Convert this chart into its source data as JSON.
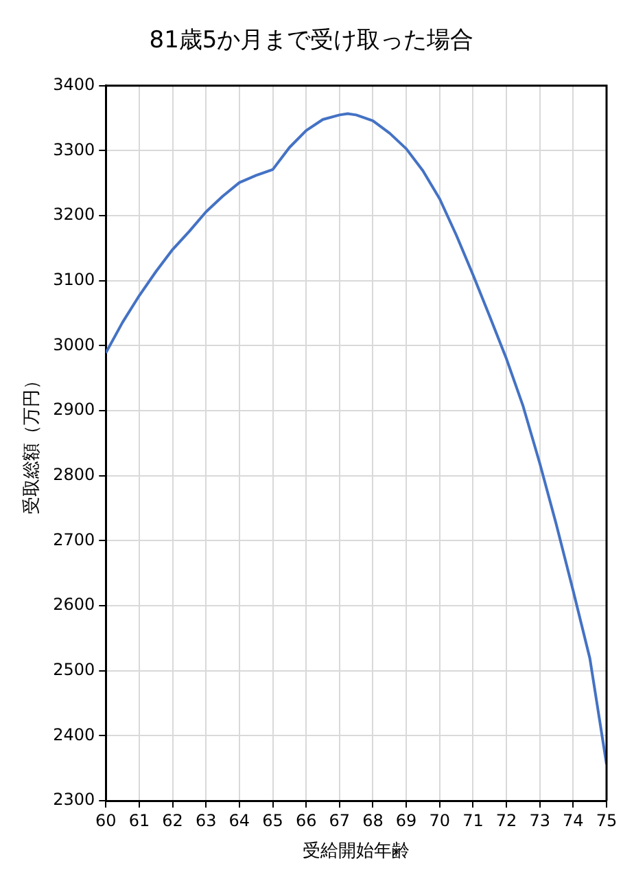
{
  "chart_data": {
    "type": "line",
    "title": "81歳5か月まで受け取った場合",
    "xlabel": "受給開始年齢",
    "ylabel": "受取総額（万円）",
    "xlim": [
      60,
      75
    ],
    "xticks": [
      60,
      61,
      62,
      63,
      64,
      65,
      66,
      67,
      68,
      69,
      70,
      71,
      72,
      73,
      74,
      75
    ],
    "ylim": [
      2300,
      3400
    ],
    "yticks": [
      2300,
      2400,
      2500,
      2600,
      2700,
      2800,
      2900,
      3000,
      3100,
      3200,
      3300,
      3400
    ],
    "grid": true,
    "legend": false,
    "marker": "none",
    "line_style": "solid",
    "series": [
      {
        "color": "#4472c4",
        "x": [
          60,
          60.5,
          61,
          61.5,
          62,
          62.5,
          63,
          63.5,
          64,
          64.5,
          65,
          65.5,
          66,
          66.5,
          67,
          67.25,
          67.5,
          68,
          68.5,
          69,
          69.5,
          70,
          70.5,
          71,
          71.5,
          72,
          72.5,
          73,
          73.5,
          74,
          74.5,
          75
        ],
        "values": [
          2989,
          3036,
          3077,
          3114,
          3148,
          3176,
          3206,
          3230,
          3251,
          3262,
          3271,
          3305,
          3331,
          3348,
          3355,
          3357,
          3355,
          3346,
          3327,
          3303,
          3269,
          3226,
          3170,
          3109,
          3045,
          2980,
          2907,
          2819,
          2724,
          2623,
          2519,
          2356
        ]
      }
    ]
  }
}
